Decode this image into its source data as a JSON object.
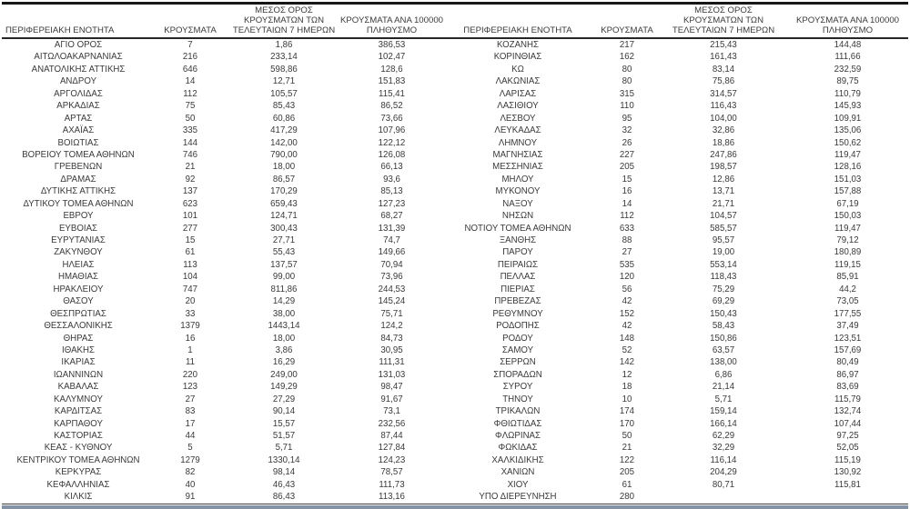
{
  "header": {
    "region": "ΠΕΡΙΦΕΡΕΙΑΚΗ ΕΝΟΤΗΤΑ",
    "cases": "ΚΡΟΥΣΜΑΤΑ",
    "avg7_line1": "ΜΕΣΟΣ ΟΡΟΣ",
    "avg7_line2": "ΚΡΟΥΣΜΑΤΩΝ ΤΩΝ",
    "avg7_line3": "ΤΕΛΕΥΤΑΙΩΝ 7 ΗΜΕΡΩΝ",
    "per100k_line1": "ΚΡΟΥΣΜΑΤΑ ΑΝΑ 100000",
    "per100k_line2": "ΠΛΗΘΥΣΜΟ"
  },
  "colors": {
    "text": "#3a3a3a",
    "top_line": "#171717",
    "header_line": "#262626",
    "body_line": "#3c3c3c",
    "bottom_bar": "#8593a6"
  },
  "rows": {
    "left": [
      {
        "region": "ΑΓΙΟ ΟΡΟΣ",
        "cases": "7",
        "avg7": "1,86",
        "per100k": "386,53"
      },
      {
        "region": "ΑΙΤΩΛΟΑΚΑΡΝΑΝΙΑΣ",
        "cases": "216",
        "avg7": "233,14",
        "per100k": "102,47"
      },
      {
        "region": "ΑΝΑΤΟΛΙΚΗΣ ΑΤΤΙΚΗΣ",
        "cases": "646",
        "avg7": "598,86",
        "per100k": "128,6"
      },
      {
        "region": "ΑΝΔΡΟΥ",
        "cases": "14",
        "avg7": "12,71",
        "per100k": "151,83"
      },
      {
        "region": "ΑΡΓΟΛΙΔΑΣ",
        "cases": "112",
        "avg7": "105,57",
        "per100k": "115,41"
      },
      {
        "region": "ΑΡΚΑΔΙΑΣ",
        "cases": "75",
        "avg7": "85,43",
        "per100k": "86,52"
      },
      {
        "region": "ΑΡΤΑΣ",
        "cases": "50",
        "avg7": "60,86",
        "per100k": "73,66"
      },
      {
        "region": "ΑΧΑΪΑΣ",
        "cases": "335",
        "avg7": "417,29",
        "per100k": "107,96"
      },
      {
        "region": "ΒΟΙΩΤΙΑΣ",
        "cases": "144",
        "avg7": "142,00",
        "per100k": "122,12"
      },
      {
        "region": "ΒΟΡΕΙΟΥ ΤΟΜΕΑ ΑΘΗΝΩΝ",
        "cases": "746",
        "avg7": "790,00",
        "per100k": "126,08"
      },
      {
        "region": "ΓΡΕΒΕΝΩΝ",
        "cases": "21",
        "avg7": "18,00",
        "per100k": "66,13"
      },
      {
        "region": "ΔΡΑΜΑΣ",
        "cases": "92",
        "avg7": "86,57",
        "per100k": "93,6"
      },
      {
        "region": "ΔΥΤΙΚΗΣ ΑΤΤΙΚΗΣ",
        "cases": "137",
        "avg7": "170,29",
        "per100k": "85,13"
      },
      {
        "region": "ΔΥΤΙΚΟΥ ΤΟΜΕΑ ΑΘΗΝΩΝ",
        "cases": "623",
        "avg7": "659,43",
        "per100k": "127,23"
      },
      {
        "region": "ΕΒΡΟΥ",
        "cases": "101",
        "avg7": "124,71",
        "per100k": "68,27"
      },
      {
        "region": "ΕΥΒΟΙΑΣ",
        "cases": "277",
        "avg7": "300,43",
        "per100k": "131,39"
      },
      {
        "region": "ΕΥΡΥΤΑΝΙΑΣ",
        "cases": "15",
        "avg7": "27,71",
        "per100k": "74,7"
      },
      {
        "region": "ΖΑΚΥΝΘΟΥ",
        "cases": "61",
        "avg7": "55,43",
        "per100k": "149,66"
      },
      {
        "region": "ΗΛΕΙΑΣ",
        "cases": "113",
        "avg7": "137,57",
        "per100k": "70,94"
      },
      {
        "region": "ΗΜΑΘΙΑΣ",
        "cases": "104",
        "avg7": "99,00",
        "per100k": "73,96"
      },
      {
        "region": "ΗΡΑΚΛΕΙΟΥ",
        "cases": "747",
        "avg7": "811,86",
        "per100k": "244,53"
      },
      {
        "region": "ΘΑΣΟΥ",
        "cases": "20",
        "avg7": "14,29",
        "per100k": "145,24"
      },
      {
        "region": "ΘΕΣΠΡΩΤΙΑΣ",
        "cases": "33",
        "avg7": "38,00",
        "per100k": "75,71"
      },
      {
        "region": "ΘΕΣΣΑΛΟΝΙΚΗΣ",
        "cases": "1379",
        "avg7": "1443,14",
        "per100k": "124,2"
      },
      {
        "region": "ΘΗΡΑΣ",
        "cases": "16",
        "avg7": "18,00",
        "per100k": "84,73"
      },
      {
        "region": "ΙΘΑΚΗΣ",
        "cases": "1",
        "avg7": "3,86",
        "per100k": "30,95"
      },
      {
        "region": "ΙΚΑΡΙΑΣ",
        "cases": "11",
        "avg7": "16,29",
        "per100k": "111,31"
      },
      {
        "region": "ΙΩΑΝΝΙΝΩΝ",
        "cases": "220",
        "avg7": "249,00",
        "per100k": "131,03"
      },
      {
        "region": "ΚΑΒΑΛΑΣ",
        "cases": "123",
        "avg7": "149,29",
        "per100k": "98,47"
      },
      {
        "region": "ΚΑΛΥΜΝΟΥ",
        "cases": "27",
        "avg7": "27,29",
        "per100k": "91,67"
      },
      {
        "region": "ΚΑΡΔΙΤΣΑΣ",
        "cases": "83",
        "avg7": "90,14",
        "per100k": "73,1"
      },
      {
        "region": "ΚΑΡΠΑΘΟΥ",
        "cases": "17",
        "avg7": "15,57",
        "per100k": "232,56"
      },
      {
        "region": "ΚΑΣΤΟΡΙΑΣ",
        "cases": "44",
        "avg7": "51,57",
        "per100k": "87,44"
      },
      {
        "region": "ΚΕΑΣ - ΚΥΘΝΟΥ",
        "cases": "5",
        "avg7": "5,71",
        "per100k": "127,84"
      },
      {
        "region": "ΚΕΝΤΡΙΚΟΥ ΤΟΜΕΑ ΑΘΗΝΩΝ",
        "cases": "1279",
        "avg7": "1330,14",
        "per100k": "124,23"
      },
      {
        "region": "ΚΕΡΚΥΡΑΣ",
        "cases": "82",
        "avg7": "98,14",
        "per100k": "78,57"
      },
      {
        "region": "ΚΕΦΑΛΛΗΝΙΑΣ",
        "cases": "40",
        "avg7": "46,43",
        "per100k": "111,73"
      },
      {
        "region": "ΚΙΛΚΙΣ",
        "cases": "91",
        "avg7": "86,43",
        "per100k": "113,16"
      }
    ],
    "right": [
      {
        "region": "ΚΟΖΑΝΗΣ",
        "cases": "217",
        "avg7": "215,43",
        "per100k": "144,48"
      },
      {
        "region": "ΚΟΡΙΝΘΙΑΣ",
        "cases": "162",
        "avg7": "161,43",
        "per100k": "111,66"
      },
      {
        "region": "ΚΩ",
        "cases": "80",
        "avg7": "83,14",
        "per100k": "232,59"
      },
      {
        "region": "ΛΑΚΩΝΙΑΣ",
        "cases": "80",
        "avg7": "75,86",
        "per100k": "89,75"
      },
      {
        "region": "ΛΑΡΙΣΑΣ",
        "cases": "315",
        "avg7": "314,57",
        "per100k": "110,79"
      },
      {
        "region": "ΛΑΣΙΘΙΟΥ",
        "cases": "110",
        "avg7": "116,43",
        "per100k": "145,93"
      },
      {
        "region": "ΛΕΣΒΟΥ",
        "cases": "95",
        "avg7": "104,00",
        "per100k": "109,91"
      },
      {
        "region": "ΛΕΥΚΑΔΑΣ",
        "cases": "32",
        "avg7": "32,86",
        "per100k": "135,06"
      },
      {
        "region": "ΛΗΜΝΟΥ",
        "cases": "26",
        "avg7": "18,86",
        "per100k": "150,62"
      },
      {
        "region": "ΜΑΓΝΗΣΙΑΣ",
        "cases": "227",
        "avg7": "247,86",
        "per100k": "119,47"
      },
      {
        "region": "ΜΕΣΣΗΝΙΑΣ",
        "cases": "205",
        "avg7": "198,57",
        "per100k": "128,16"
      },
      {
        "region": "ΜΗΛΟΥ",
        "cases": "15",
        "avg7": "12,86",
        "per100k": "151,03"
      },
      {
        "region": "ΜΥΚΟΝΟΥ",
        "cases": "16",
        "avg7": "13,71",
        "per100k": "157,88"
      },
      {
        "region": "ΝΑΞΟΥ",
        "cases": "14",
        "avg7": "21,71",
        "per100k": "67,19"
      },
      {
        "region": "ΝΗΣΩΝ",
        "cases": "112",
        "avg7": "104,57",
        "per100k": "150,03"
      },
      {
        "region": "ΝΟΤΙΟΥ ΤΟΜΕΑ ΑΘΗΝΩΝ",
        "cases": "633",
        "avg7": "585,57",
        "per100k": "119,47"
      },
      {
        "region": "ΞΑΝΘΗΣ",
        "cases": "88",
        "avg7": "95,57",
        "per100k": "79,12"
      },
      {
        "region": "ΠΑΡΟΥ",
        "cases": "27",
        "avg7": "19,00",
        "per100k": "180,89"
      },
      {
        "region": "ΠΕΙΡΑΙΩΣ",
        "cases": "535",
        "avg7": "553,14",
        "per100k": "119,15"
      },
      {
        "region": "ΠΕΛΛΑΣ",
        "cases": "120",
        "avg7": "118,43",
        "per100k": "85,91"
      },
      {
        "region": "ΠΙΕΡΙΑΣ",
        "cases": "56",
        "avg7": "75,29",
        "per100k": "44,2"
      },
      {
        "region": "ΠΡΕΒΕΖΑΣ",
        "cases": "42",
        "avg7": "69,29",
        "per100k": "73,05"
      },
      {
        "region": "ΡΕΘΥΜΝΟΥ",
        "cases": "152",
        "avg7": "150,43",
        "per100k": "177,55"
      },
      {
        "region": "ΡΟΔΟΠΗΣ",
        "cases": "42",
        "avg7": "58,43",
        "per100k": "37,49"
      },
      {
        "region": "ΡΟΔΟΥ",
        "cases": "148",
        "avg7": "150,86",
        "per100k": "123,51"
      },
      {
        "region": "ΣΑΜΟΥ",
        "cases": "52",
        "avg7": "63,57",
        "per100k": "157,69"
      },
      {
        "region": "ΣΕΡΡΩΝ",
        "cases": "142",
        "avg7": "138,00",
        "per100k": "80,49"
      },
      {
        "region": "ΣΠΟΡΑΔΩΝ",
        "cases": "12",
        "avg7": "6,86",
        "per100k": "86,97"
      },
      {
        "region": "ΣΥΡΟΥ",
        "cases": "18",
        "avg7": "21,14",
        "per100k": "83,69"
      },
      {
        "region": "ΤΗΝΟΥ",
        "cases": "10",
        "avg7": "5,71",
        "per100k": "115,79"
      },
      {
        "region": "ΤΡΙΚΑΛΩΝ",
        "cases": "174",
        "avg7": "159,14",
        "per100k": "132,74"
      },
      {
        "region": "ΦΘΙΩΤΙΔΑΣ",
        "cases": "170",
        "avg7": "166,14",
        "per100k": "107,44"
      },
      {
        "region": "ΦΛΩΡΙΝΑΣ",
        "cases": "50",
        "avg7": "62,29",
        "per100k": "97,25"
      },
      {
        "region": "ΦΩΚΙΔΑΣ",
        "cases": "21",
        "avg7": "32,29",
        "per100k": "52,05"
      },
      {
        "region": "ΧΑΛΚΙΔΙΚΗΣ",
        "cases": "122",
        "avg7": "116,14",
        "per100k": "115,19"
      },
      {
        "region": "ΧΑΝΙΩΝ",
        "cases": "205",
        "avg7": "204,29",
        "per100k": "130,92"
      },
      {
        "region": "ΧΙΟΥ",
        "cases": "61",
        "avg7": "80,71",
        "per100k": "115,81"
      },
      {
        "region": "ΥΠΟ ΔΙΕΡΕΥΝΗΣΗ",
        "cases": "280",
        "avg7": "",
        "per100k": ""
      }
    ]
  }
}
